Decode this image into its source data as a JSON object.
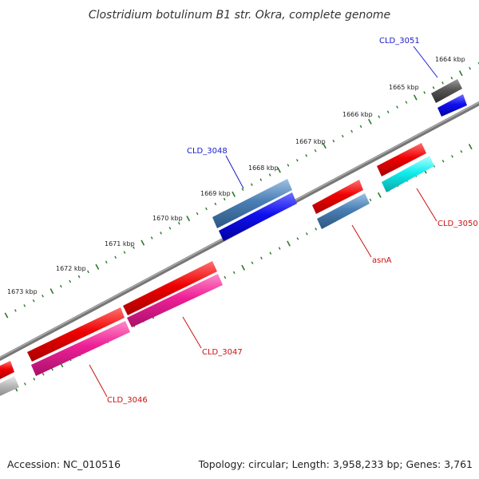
{
  "title": "Clostridium botulinum B1 str. Okra, complete genome",
  "footer": {
    "accession": "Accession: NC_010516",
    "summary": "Topology: circular; Length: 3,958,233 bp; Genes: 3,761"
  },
  "colors": {
    "backbone": "#7a7a7a",
    "tick": "#2a7a2a",
    "label_plus": "#1a1acc",
    "label_minus": "#cc1111",
    "cds": "#ee0000",
    "blue_gene": "#1010ee",
    "steelblue_gene": "#4a7fb5",
    "pink_gene": "#ee1f96",
    "cyan_gene": "#11eeee",
    "dark_gene": "#555555",
    "gray_gene": "#bcbcbc"
  },
  "scale": {
    "unit": "kbp",
    "labels": [
      "1664 kbp",
      "1665 kbp",
      "1666 kbp",
      "1667 kbp",
      "1668 kbp",
      "1669 kbp",
      "1670 kbp",
      "1671 kbp",
      "1672 kbp",
      "1673 kbp"
    ]
  },
  "genes": {
    "CLD_3051": "CLD_3051",
    "CLD_3048": "CLD_3048",
    "CLD_3050": "CLD_3050",
    "asnA": "asnA",
    "CLD_3047": "CLD_3047",
    "CLD_3046": "CLD_3046"
  }
}
